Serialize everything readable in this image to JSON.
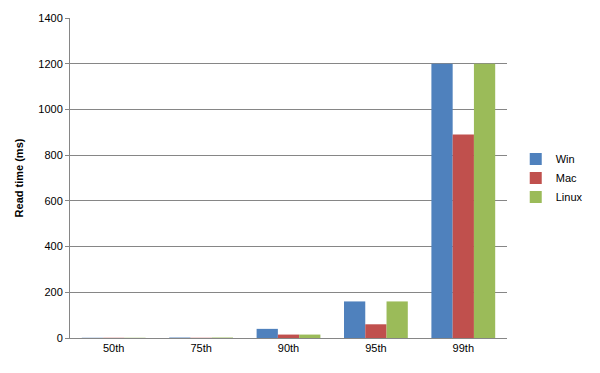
{
  "chart_data": {
    "type": "bar",
    "y_label": "Read time (ms)",
    "categories": [
      "50th",
      "75th",
      "90th",
      "95th",
      "99th"
    ],
    "series": [
      {
        "name": "Win",
        "color": "#4f81bd",
        "values": [
          1,
          2,
          40,
          160,
          1200
        ]
      },
      {
        "name": "Mac",
        "color": "#c0504d",
        "values": [
          1,
          1,
          15,
          60,
          890
        ]
      },
      {
        "name": "Linux",
        "color": "#9bbb59",
        "values": [
          1,
          2,
          15,
          160,
          1200
        ]
      }
    ],
    "ylim": [
      0,
      1400
    ],
    "yticks": [
      0,
      200,
      400,
      600,
      800,
      1000,
      1200,
      1400
    ],
    "grid": true,
    "legend": "right"
  }
}
